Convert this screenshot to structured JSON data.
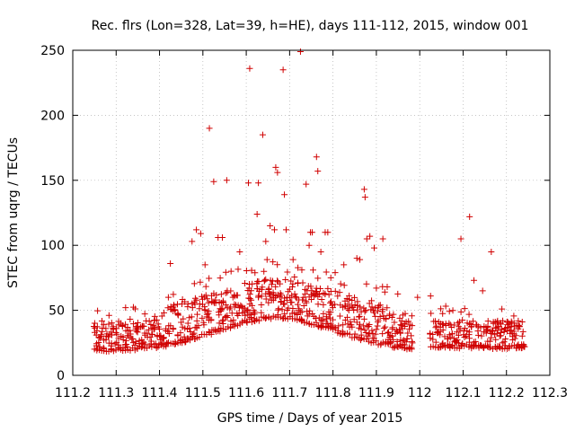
{
  "chart_data": {
    "type": "scatter",
    "title": "Rec. flrs (Lon=328, Lat=39, h=HE), days 111-112, 2015, window 001",
    "xlabel": "GPS time / Days of year 2015",
    "ylabel": "STEC from uqrg / TECUs",
    "xlim": [
      111.2,
      112.3
    ],
    "ylim": [
      0,
      250
    ],
    "xticks": [
      "111.2",
      "111.3",
      "111.4",
      "111.5",
      "111.6",
      "111.7",
      "111.8",
      "111.9",
      "112",
      "112.1",
      "112.2",
      "112.3"
    ],
    "yticks": [
      "0",
      "50",
      "100",
      "150",
      "200",
      "250"
    ],
    "marker": "+",
    "color": "#d00000",
    "grid": true,
    "outliers": [
      [
        111.425,
        86
      ],
      [
        111.475,
        103
      ],
      [
        111.485,
        112
      ],
      [
        111.495,
        109
      ],
      [
        111.505,
        85
      ],
      [
        111.515,
        190
      ],
      [
        111.525,
        149
      ],
      [
        111.535,
        106
      ],
      [
        111.545,
        106
      ],
      [
        111.555,
        150
      ],
      [
        111.565,
        80
      ],
      [
        111.585,
        95
      ],
      [
        111.605,
        148
      ],
      [
        111.608,
        236
      ],
      [
        111.625,
        124
      ],
      [
        111.628,
        148
      ],
      [
        111.638,
        185
      ],
      [
        111.645,
        103
      ],
      [
        111.648,
        89
      ],
      [
        111.655,
        115
      ],
      [
        111.665,
        112
      ],
      [
        111.668,
        160
      ],
      [
        111.672,
        156
      ],
      [
        111.685,
        235
      ],
      [
        111.688,
        139
      ],
      [
        111.692,
        112
      ],
      [
        111.708,
        89
      ],
      [
        111.725,
        249
      ],
      [
        111.738,
        147
      ],
      [
        111.745,
        100
      ],
      [
        111.748,
        110
      ],
      [
        111.752,
        110
      ],
      [
        111.762,
        168
      ],
      [
        111.765,
        157
      ],
      [
        111.772,
        95
      ],
      [
        111.782,
        110
      ],
      [
        111.788,
        110
      ],
      [
        111.795,
        75
      ],
      [
        111.805,
        79
      ],
      [
        111.825,
        85
      ],
      [
        111.855,
        90
      ],
      [
        111.862,
        89
      ],
      [
        111.872,
        143
      ],
      [
        111.874,
        137
      ],
      [
        111.878,
        105
      ],
      [
        111.885,
        107
      ],
      [
        111.895,
        98
      ],
      [
        111.915,
        105
      ],
      [
        111.925,
        68
      ],
      [
        111.995,
        60
      ],
      [
        112.025,
        61
      ],
      [
        112.095,
        105
      ],
      [
        112.115,
        122
      ],
      [
        112.125,
        73
      ],
      [
        112.145,
        65
      ],
      [
        112.165,
        95
      ]
    ]
  }
}
